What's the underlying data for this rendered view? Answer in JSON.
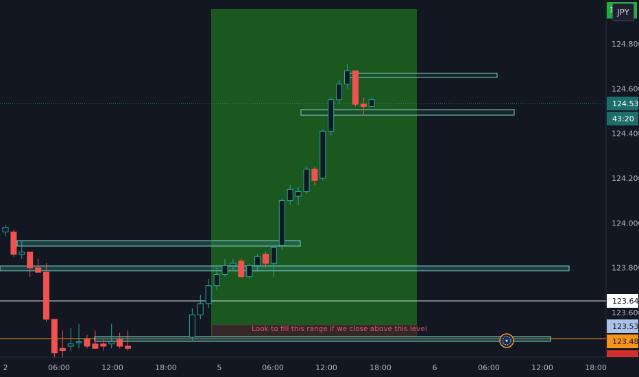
{
  "currency_badge": "JPY",
  "top_price_label": "1",
  "note": "Look to fill this range if we close above this level",
  "time_axis": {
    "labels": [
      "2",
      "06:00",
      "12:00",
      "18:00",
      "5",
      "06:00",
      "12:00",
      "18:00",
      "6",
      "06:00",
      "12:00",
      "18:00"
    ]
  },
  "price_axis": {
    "ticks": [
      "124.800",
      "124.600",
      "124.400",
      "124.200",
      "124.000",
      "123.800",
      "123.600"
    ]
  },
  "price_tags": [
    {
      "label": "124.532",
      "price": 124.532,
      "bg": "#1d6e6a",
      "fg": "#ffffff"
    },
    {
      "label": "43:20",
      "price": 124.49,
      "bg": "#1d6e6a",
      "fg": "#ffffff"
    },
    {
      "label": "123.649",
      "price": 123.649,
      "bg": "#ffffff",
      "fg": "#131722"
    },
    {
      "label": "123.538",
      "price": 123.538,
      "bg": "#a9c3e8",
      "fg": "#131722"
    },
    {
      "label": "123.480",
      "price": 123.48,
      "bg": "#f7931a",
      "fg": "#131722"
    }
  ],
  "colors": {
    "background": "#131722",
    "up": "#26a69a",
    "down": "#ef5350",
    "zone_fill": "#1b5e20",
    "level_box": "#4fb3a8",
    "orange_line": "#f7931a"
  },
  "chart_data": {
    "type": "candlestick",
    "title": "",
    "xlabel": "",
    "ylabel": "",
    "ylim": [
      123.42,
      124.96
    ],
    "candles": [
      {
        "o": 123.96,
        "h": 123.99,
        "l": 123.94,
        "c": 123.98
      },
      {
        "o": 123.96,
        "h": 123.97,
        "l": 123.85,
        "c": 123.86
      },
      {
        "o": 123.86,
        "h": 123.92,
        "l": 123.84,
        "c": 123.87
      },
      {
        "o": 123.87,
        "h": 123.87,
        "l": 123.76,
        "c": 123.8
      },
      {
        "o": 123.8,
        "h": 123.84,
        "l": 123.78,
        "c": 123.78
      },
      {
        "o": 123.78,
        "h": 123.82,
        "l": 123.56,
        "c": 123.57
      },
      {
        "o": 123.57,
        "h": 123.57,
        "l": 123.4,
        "c": 123.42
      },
      {
        "o": 123.44,
        "h": 123.52,
        "l": 123.4,
        "c": 123.43
      },
      {
        "o": 123.45,
        "h": 123.53,
        "l": 123.43,
        "c": 123.46
      },
      {
        "o": 123.47,
        "h": 123.55,
        "l": 123.44,
        "c": 123.47
      },
      {
        "o": 123.48,
        "h": 123.5,
        "l": 123.44,
        "c": 123.45
      },
      {
        "o": 123.46,
        "h": 123.52,
        "l": 123.44,
        "c": 123.44
      },
      {
        "o": 123.46,
        "h": 123.48,
        "l": 123.43,
        "c": 123.45
      },
      {
        "o": 123.46,
        "h": 123.55,
        "l": 123.44,
        "c": 123.47
      },
      {
        "o": 123.48,
        "h": 123.51,
        "l": 123.44,
        "c": 123.45
      },
      {
        "o": 123.45,
        "h": 123.52,
        "l": 123.43,
        "c": 123.44
      },
      {
        "o": 123.49,
        "h": 123.62,
        "l": 123.47,
        "c": 123.59
      },
      {
        "o": 123.59,
        "h": 123.68,
        "l": 123.57,
        "c": 123.64
      },
      {
        "o": 123.64,
        "h": 123.75,
        "l": 123.62,
        "c": 123.72
      },
      {
        "o": 123.72,
        "h": 123.8,
        "l": 123.7,
        "c": 123.77
      },
      {
        "o": 123.77,
        "h": 123.84,
        "l": 123.76,
        "c": 123.81
      },
      {
        "o": 123.81,
        "h": 123.84,
        "l": 123.79,
        "c": 123.82
      },
      {
        "o": 123.83,
        "h": 123.84,
        "l": 123.76,
        "c": 123.76
      },
      {
        "o": 123.76,
        "h": 123.82,
        "l": 123.75,
        "c": 123.81
      },
      {
        "o": 123.81,
        "h": 123.86,
        "l": 123.78,
        "c": 123.85
      },
      {
        "o": 123.86,
        "h": 123.87,
        "l": 123.8,
        "c": 123.82
      },
      {
        "o": 123.82,
        "h": 123.9,
        "l": 123.76,
        "c": 123.89
      },
      {
        "o": 123.9,
        "h": 124.11,
        "l": 123.88,
        "c": 124.1
      },
      {
        "o": 124.1,
        "h": 124.17,
        "l": 124.08,
        "c": 124.15
      },
      {
        "o": 124.12,
        "h": 124.16,
        "l": 124.08,
        "c": 124.14
      },
      {
        "o": 124.14,
        "h": 124.25,
        "l": 124.13,
        "c": 124.24
      },
      {
        "o": 124.24,
        "h": 124.25,
        "l": 124.17,
        "c": 124.19
      },
      {
        "o": 124.2,
        "h": 124.42,
        "l": 124.19,
        "c": 124.41
      },
      {
        "o": 124.41,
        "h": 124.56,
        "l": 124.39,
        "c": 124.55
      },
      {
        "o": 124.55,
        "h": 124.64,
        "l": 124.53,
        "c": 124.62
      },
      {
        "o": 124.62,
        "h": 124.71,
        "l": 124.6,
        "c": 124.68
      },
      {
        "o": 124.68,
        "h": 124.68,
        "l": 124.52,
        "c": 124.53
      },
      {
        "o": 124.53,
        "h": 124.56,
        "l": 124.48,
        "c": 124.52
      },
      {
        "o": 124.52,
        "h": 124.56,
        "l": 124.52,
        "c": 124.55
      }
    ],
    "levels": [
      {
        "name": "",
        "price": 124.5
      },
      {
        "name": "",
        "price": 124.67
      },
      {
        "name": "",
        "price": 123.91
      },
      {
        "name": "",
        "price": 123.79
      },
      {
        "name": "",
        "price": 123.48
      }
    ],
    "horizontal_lines": [
      124.532,
      123.649,
      123.48
    ],
    "grid": false
  }
}
